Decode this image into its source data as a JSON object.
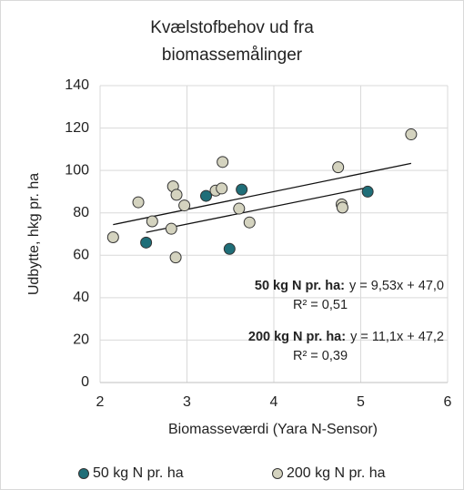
{
  "chart_data": {
    "type": "scatter",
    "title": [
      "Kvælstofbehov ud fra",
      "biomassemålinger"
    ],
    "x_label": "Biomasseværdi  (Yara N-Sensor)",
    "y_label": "Udbytte, hkg pr. ha",
    "xlim": [
      2,
      6
    ],
    "xticks": [
      2,
      3,
      4,
      5,
      6
    ],
    "ylim": [
      0,
      140
    ],
    "yticks": [
      0,
      20,
      40,
      60,
      80,
      100,
      120,
      140
    ],
    "grid": true,
    "legend": "bottom",
    "trendline": true,
    "series": [
      {
        "name": "50 kg N pr. ha",
        "color": "#1f6e78",
        "x": [
          2.53,
          3.22,
          3.49,
          3.63,
          5.08
        ],
        "values": [
          66,
          88,
          63,
          91,
          90
        ]
      },
      {
        "name": "200 kg N pr. ha",
        "color": "#d4d3bf",
        "x": [
          2.15,
          2.44,
          2.6,
          2.84,
          2.88,
          2.82,
          2.87,
          2.97,
          3.33,
          3.4,
          3.41,
          3.6,
          3.72,
          4.74,
          4.78,
          4.79,
          5.58
        ],
        "values": [
          68.5,
          85,
          76,
          92.5,
          88.5,
          72.5,
          59,
          83.5,
          90.5,
          91.5,
          104,
          82,
          75.5,
          101.5,
          84,
          82.5,
          117
        ]
      }
    ],
    "annotations": [
      {
        "bold": "50 kg N pr. ha:",
        "equation": "y = 9,53x + 47,0",
        "r2": "R² = 0,51"
      },
      {
        "bold": "200 kg N pr. ha:",
        "equation": "y = 11,1x + 47,2",
        "r2": "R² = 0,39"
      }
    ]
  }
}
